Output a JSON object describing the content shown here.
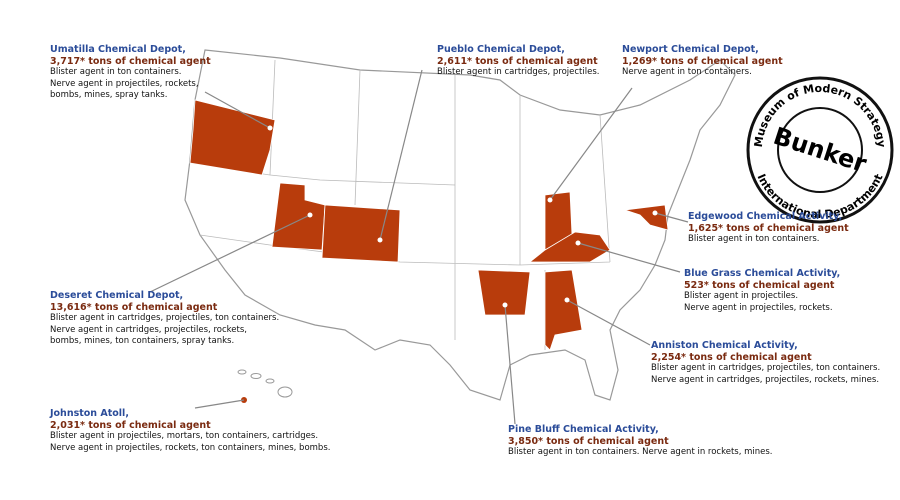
{
  "sites": [
    {
      "name": "Umatilla Chemical Depot,",
      "amount": "3,717* tons of chemical agent",
      "lines": [
        "Blister agent in ton containers.",
        "Nerve agent in projectiles, rockets,",
        "bombs, mines, spray tanks."
      ]
    },
    {
      "name": "Pueblo Chemical Depot,",
      "amount": "2,611* tons of chemical agent",
      "lines": [
        "Blister agent in cartridges, projectiles."
      ]
    },
    {
      "name": "Newport Chemical Depot,",
      "amount": "1,269* tons of chemical agent",
      "lines": [
        "Nerve agent in ton containers."
      ]
    },
    {
      "name": "Edgewood Chemical Activity,",
      "amount": "1,625* tons of chemical agent",
      "lines": [
        "Blister agent in ton containers."
      ]
    },
    {
      "name": "Blue Grass Chemical Activity,",
      "amount": "523* tons of chemical agent",
      "lines": [
        "Blister agent in projectiles.",
        "Nerve agent in projectiles, rockets."
      ]
    },
    {
      "name": "Anniston Chemical Activity,",
      "amount": "2,254* tons of chemical agent",
      "lines": [
        "Blister agent in cartridges, projectiles, ton containers.",
        "Nerve agent in cartridges, projectiles, rockets, mines."
      ]
    },
    {
      "name": "Pine Bluff Chemical Activity,",
      "amount": "3,850* tons of chemical agent",
      "lines": [
        "Blister agent in ton containers. Nerve agent in rockets, mines."
      ]
    },
    {
      "name": "Deseret Chemical Depot,",
      "amount": "13,616* tons of chemical agent",
      "lines": [
        "Blister agent in cartridges, projectiles, ton containers.",
        "Nerve agent in cartridges, projectiles, rockets,",
        "bombs, mines, ton containers, spray tanks."
      ]
    },
    {
      "name": "Johnston Atoll,",
      "amount": "2,031* tons of chemical agent",
      "lines": [
        "Blister agent in projectiles, mortars, ton containers, cartridges.",
        "Nerve agent in projectiles, rockets, ton containers, mines, bombs."
      ]
    }
  ],
  "stamp": {
    "top": "Museum of Modern Strategy",
    "center": "Bunker",
    "bottom": "International Department"
  }
}
